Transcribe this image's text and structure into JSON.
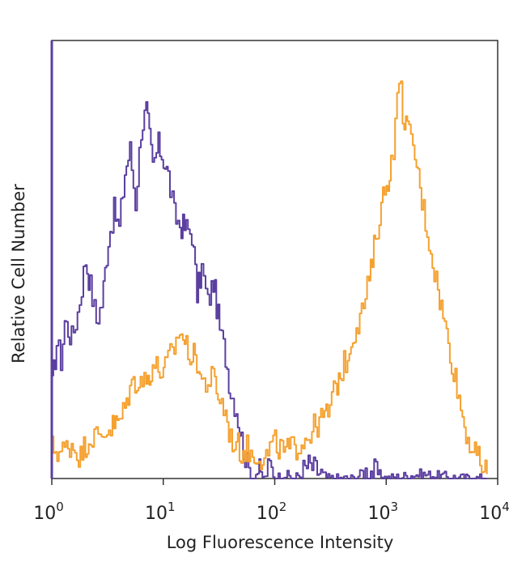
{
  "chart_data": {
    "type": "line",
    "title": "",
    "xlabel": "Log Fluorescence Intensity",
    "ylabel": "Relative Cell Number",
    "x_scale": "log",
    "xlim": [
      1,
      10000
    ],
    "ylim": [
      0,
      100
    ],
    "x_ticks": [
      {
        "value": 1,
        "base": "10",
        "exp": "0"
      },
      {
        "value": 10,
        "base": "10",
        "exp": "1"
      },
      {
        "value": 100,
        "base": "10",
        "exp": "2"
      },
      {
        "value": 1000,
        "base": "10",
        "exp": "3"
      },
      {
        "value": 10000,
        "base": "10",
        "exp": "4"
      }
    ],
    "grid": false,
    "legend": "none",
    "series": [
      {
        "color": "#5b3fa0",
        "x": [
          1,
          1.1,
          1.2,
          1.3,
          1.5,
          1.7,
          2,
          2.2,
          2.5,
          2.8,
          3.2,
          3.6,
          4,
          4.5,
          5,
          5.6,
          6.3,
          7,
          8,
          9,
          10,
          11,
          12.5,
          14,
          16,
          18,
          20,
          22,
          25,
          28,
          32,
          36,
          40,
          45,
          50,
          56,
          63,
          70,
          80,
          90,
          100,
          120,
          150,
          200,
          300,
          500,
          700,
          1000,
          2000,
          5000,
          8000
        ],
        "y": [
          21,
          31,
          27,
          36,
          32,
          38,
          50,
          44,
          36,
          40,
          55,
          61,
          57,
          70,
          75,
          63,
          80,
          84,
          71,
          76,
          73,
          69,
          60,
          58,
          57,
          56,
          42,
          48,
          40,
          45,
          34,
          28,
          20,
          16,
          9,
          3,
          0,
          2,
          0,
          3,
          0,
          1,
          0,
          3,
          0,
          0,
          2,
          0,
          1,
          0,
          0
        ]
      },
      {
        "color": "#f5a12f",
        "x": [
          1,
          1.2,
          1.5,
          1.8,
          2,
          2.3,
          2.6,
          3,
          3.5,
          4,
          4.5,
          5,
          6,
          7,
          8,
          9,
          10,
          11,
          12.5,
          14,
          16,
          18,
          20,
          22,
          25,
          28,
          32,
          36,
          40,
          45,
          50,
          56,
          63,
          70,
          80,
          90,
          100,
          120,
          150,
          200,
          250,
          300,
          350,
          400,
          450,
          500,
          600,
          700,
          800,
          900,
          1000,
          1100,
          1200,
          1300,
          1400,
          1600,
          1800,
          2000,
          2500,
          3000,
          4000,
          5000,
          6000,
          8000
        ],
        "y": [
          7,
          6,
          8,
          5,
          8,
          10,
          9,
          11,
          12,
          13,
          16,
          21,
          23,
          22,
          26,
          25,
          24,
          27,
          30,
          34,
          30,
          28,
          27,
          22,
          22,
          23,
          18,
          15,
          9,
          8,
          6,
          7,
          5,
          6,
          4,
          7,
          8,
          6,
          7,
          10,
          13,
          15,
          21,
          25,
          28,
          33,
          38,
          45,
          55,
          63,
          67,
          72,
          80,
          92,
          84,
          78,
          74,
          66,
          52,
          41,
          25,
          12,
          6,
          1
        ]
      }
    ]
  }
}
